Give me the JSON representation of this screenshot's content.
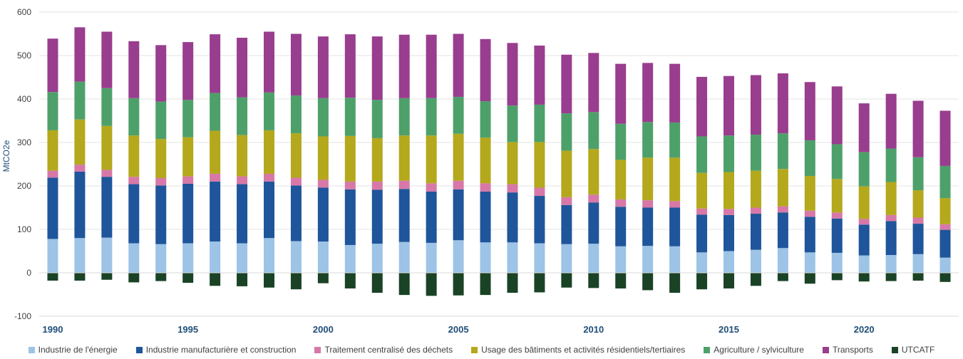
{
  "chart_data": {
    "type": "bar",
    "stacked": true,
    "ylabel": "MtCO2e",
    "ylim": [
      -100,
      600
    ],
    "yticks": [
      -100,
      0,
      100,
      200,
      300,
      400,
      500,
      600
    ],
    "xtick_labels": [
      "1990",
      "1995",
      "2000",
      "2005",
      "2010",
      "2015",
      "2020"
    ],
    "grid": "horizontal",
    "legend_position": "bottom",
    "categories": [
      1990,
      1991,
      1992,
      1993,
      1994,
      1995,
      1996,
      1997,
      1998,
      1999,
      2000,
      2001,
      2002,
      2003,
      2004,
      2005,
      2006,
      2007,
      2008,
      2009,
      2010,
      2011,
      2012,
      2013,
      2014,
      2015,
      2016,
      2017,
      2018,
      2019,
      2020,
      2021,
      2022,
      2023
    ],
    "series": [
      {
        "name": "Industrie de l'énergie",
        "color": "#9dc3e6",
        "values": [
          78,
          80,
          81,
          68,
          66,
          68,
          72,
          68,
          80,
          73,
          72,
          64,
          67,
          71,
          69,
          75,
          70,
          70,
          68,
          66,
          67,
          61,
          62,
          61,
          47,
          50,
          53,
          57,
          47,
          46,
          40,
          41,
          43,
          35
        ]
      },
      {
        "name": "Industrie manufacturière et construction",
        "color": "#1f559a",
        "values": [
          141,
          153,
          140,
          136,
          135,
          137,
          138,
          136,
          130,
          128,
          124,
          128,
          124,
          122,
          118,
          117,
          117,
          115,
          109,
          90,
          95,
          91,
          88,
          89,
          87,
          83,
          83,
          82,
          82,
          79,
          71,
          78,
          70,
          64
        ]
      },
      {
        "name": "Traitement centralisé des déchets",
        "color": "#d778a8",
        "values": [
          16,
          16,
          16,
          17,
          17,
          17,
          18,
          18,
          18,
          18,
          18,
          18,
          19,
          19,
          19,
          20,
          19,
          19,
          19,
          18,
          18,
          17,
          17,
          15,
          14,
          14,
          14,
          14,
          14,
          14,
          13,
          14,
          14,
          13
        ]
      },
      {
        "name": "Usage des bâtiments et activités résidentiels/tertiaires",
        "color": "#b4a81c",
        "values": [
          93,
          104,
          101,
          95,
          90,
          90,
          99,
          95,
          100,
          102,
          100,
          105,
          100,
          104,
          110,
          108,
          105,
          97,
          105,
          107,
          105,
          91,
          98,
          100,
          82,
          85,
          85,
          86,
          80,
          77,
          75,
          76,
          63,
          60
        ]
      },
      {
        "name": "Agriculture / sylviculture",
        "color": "#4ea06a",
        "values": [
          88,
          87,
          87,
          86,
          86,
          86,
          87,
          87,
          87,
          87,
          88,
          88,
          88,
          86,
          86,
          85,
          84,
          84,
          86,
          86,
          85,
          83,
          82,
          81,
          84,
          84,
          83,
          82,
          82,
          80,
          79,
          77,
          76,
          74
        ]
      },
      {
        "name": "Transports",
        "color": "#993d8e",
        "values": [
          123,
          125,
          130,
          131,
          130,
          133,
          135,
          137,
          140,
          142,
          142,
          146,
          146,
          146,
          146,
          145,
          143,
          144,
          136,
          135,
          136,
          138,
          136,
          135,
          137,
          137,
          137,
          138,
          134,
          133,
          112,
          126,
          130,
          127
        ]
      },
      {
        "name": "UTCATF",
        "color": "#1a4326",
        "values": [
          -18,
          -18,
          -16,
          -22,
          -19,
          -23,
          -30,
          -31,
          -34,
          -38,
          -24,
          -36,
          -46,
          -51,
          -53,
          -52,
          -51,
          -46,
          -45,
          -34,
          -35,
          -36,
          -40,
          -46,
          -38,
          -36,
          -30,
          -19,
          -25,
          -17,
          -20,
          -19,
          -18,
          -21
        ]
      }
    ]
  }
}
